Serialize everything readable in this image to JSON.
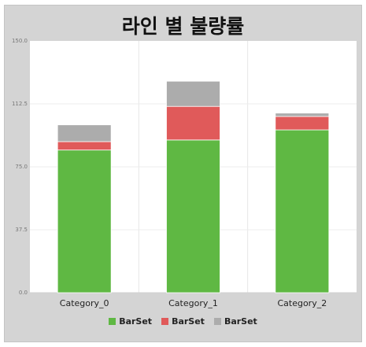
{
  "chart_data": {
    "type": "bar",
    "stacked": true,
    "title": "라인 별 불량률",
    "categories": [
      "Category_0",
      "Category_1",
      "Category_2"
    ],
    "series": [
      {
        "name": "BarSet",
        "color": "#5fb843",
        "values": [
          85,
          91,
          97
        ]
      },
      {
        "name": "BarSet",
        "color": "#e05a5a",
        "values": [
          5,
          20,
          8
        ]
      },
      {
        "name": "BarSet",
        "color": "#acacac",
        "values": [
          10,
          15,
          2
        ]
      }
    ],
    "ylim": [
      0,
      150
    ],
    "yticks": [
      "0.0",
      "37.5",
      "75.0",
      "112.5",
      "150.0"
    ],
    "grid": true,
    "legend_position": "bottom"
  }
}
